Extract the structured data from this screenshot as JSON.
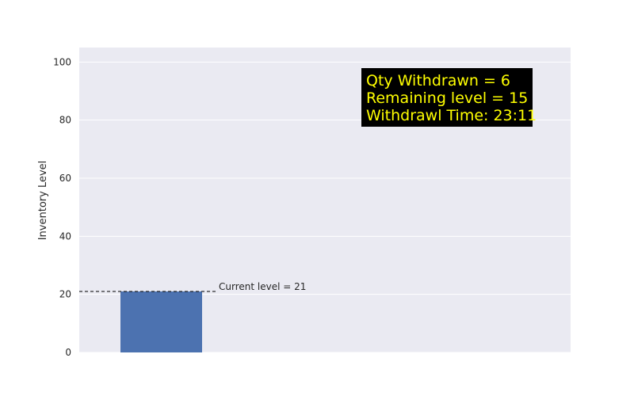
{
  "chart_data": {
    "type": "bar",
    "categories": [
      ""
    ],
    "values": [
      21
    ],
    "ylabel": "Inventory Level",
    "ylim": [
      0,
      105
    ],
    "yticks": [
      0,
      20,
      40,
      60,
      80,
      100
    ],
    "grid": true,
    "reference_line": {
      "value": 21,
      "style": "dashed",
      "label": "Current level = 21"
    },
    "info_box": {
      "lines": [
        "Qty Withdrawn = 6",
        "Remaining level = 15",
        "Withdrawl Time: 23:11"
      ],
      "background": "#000000",
      "text_color": "#ffff00"
    },
    "colors": {
      "bar": "#4c72b0",
      "plot_background": "#eaeaf2",
      "grid": "#ffffff"
    }
  }
}
